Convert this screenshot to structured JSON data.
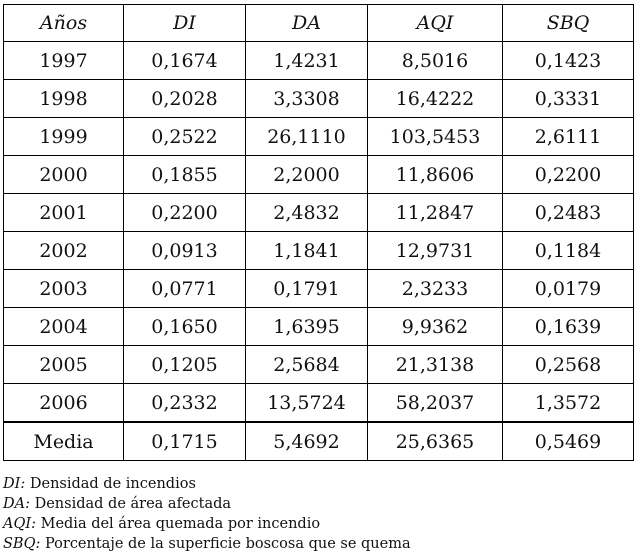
{
  "table": {
    "headers": [
      "Años",
      "DI",
      "DA",
      "AQI",
      "SBQ"
    ],
    "rows": [
      [
        "1997",
        "0,1674",
        "1,4231",
        "8,5016",
        "0,1423"
      ],
      [
        "1998",
        "0,2028",
        "3,3308",
        "16,4222",
        "0,3331"
      ],
      [
        "1999",
        "0,2522",
        "26,1110",
        "103,5453",
        "2,6111"
      ],
      [
        "2000",
        "0,1855",
        "2,2000",
        "11,8606",
        "0,2200"
      ],
      [
        "2001",
        "0,2200",
        "2,4832",
        "11,2847",
        "0,2483"
      ],
      [
        "2002",
        "0,0913",
        "1,1841",
        "12,9731",
        "0,1184"
      ],
      [
        "2003",
        "0,0771",
        "0,1791",
        "2,3233",
        "0,0179"
      ],
      [
        "2004",
        "0,1650",
        "1,6395",
        "9,9362",
        "0,1639"
      ],
      [
        "2005",
        "0,1205",
        "2,5684",
        "21,3138",
        "0,2568"
      ],
      [
        "2006",
        "0,2332",
        "13,5724",
        "58,2037",
        "1,3572"
      ]
    ],
    "summary": [
      "Media",
      "0,1715",
      "5,4692",
      "25,6365",
      "0,5469"
    ]
  },
  "notes": [
    {
      "abbr": "DI:",
      "text": " Densidad de incendios"
    },
    {
      "abbr": "DA:",
      "text": " Densidad de área afectada"
    },
    {
      "abbr": "AQI:",
      "text": " Media del área quemada por incendio"
    },
    {
      "abbr": "SBQ:",
      "text": " Porcentaje de la superficie boscosa que se quema"
    }
  ]
}
